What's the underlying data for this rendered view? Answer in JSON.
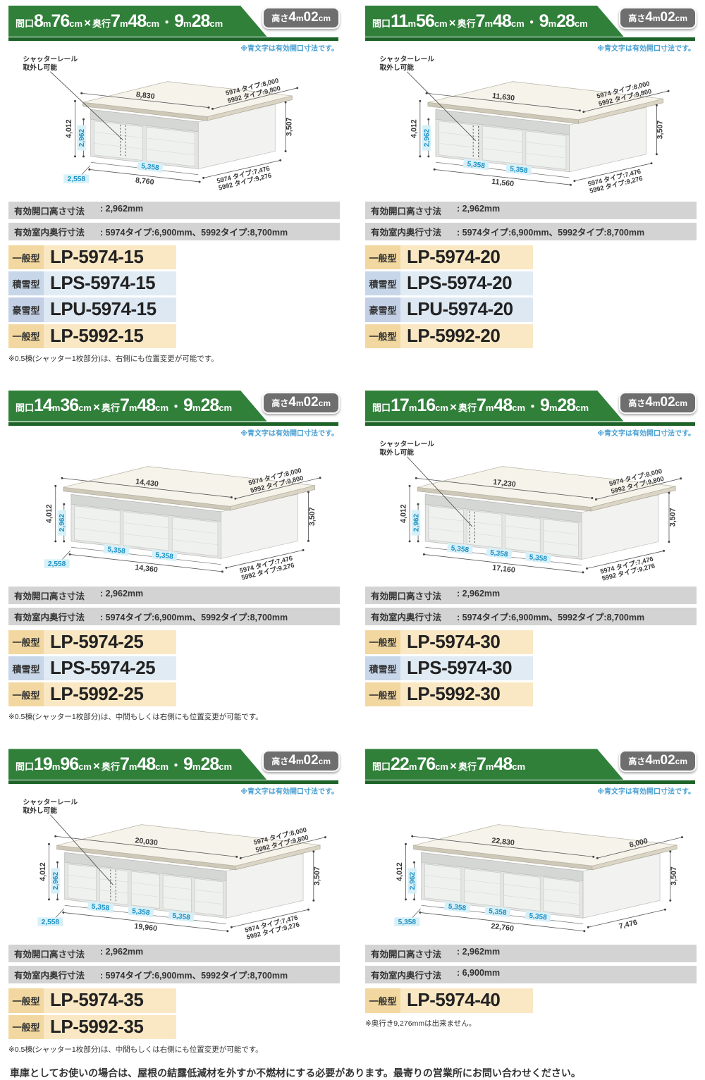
{
  "blue_note": "※青文字は有効開口寸法です。",
  "callout_text": "シャッターレール\n取外し可能",
  "height_badge_segments": [
    [
      "高さ",
      "s"
    ],
    [
      "4",
      "b"
    ],
    [
      "m",
      "s"
    ],
    [
      "02",
      "b"
    ],
    [
      "cm",
      "s"
    ]
  ],
  "footer": "車庫としてお使いの場合は、屋根の結露低減材を外すか不燃材にする必要があります。最寄りの営業所にお問い合わせください。",
  "panels": [
    {
      "header": {
        "title_segments": [
          [
            "間口",
            "s"
          ],
          [
            "8",
            "b"
          ],
          [
            "m",
            "s"
          ],
          [
            "76",
            "b"
          ],
          [
            "cm",
            "s"
          ],
          [
            "×",
            "x"
          ],
          [
            "奥行",
            "s"
          ],
          [
            "7",
            "b"
          ],
          [
            "m",
            "s"
          ],
          [
            "48",
            "b"
          ],
          [
            "cm",
            "s"
          ],
          [
            "・",
            "x"
          ],
          [
            "9",
            "b"
          ],
          [
            "m",
            "s"
          ],
          [
            "28",
            "b"
          ],
          [
            "cm",
            "s"
          ]
        ]
      },
      "diagram": {
        "callout": true,
        "top": "8,830",
        "roof_depth": [
          "5974 タイプ:8,000",
          "5992 タイプ:9,800"
        ],
        "height_total": "4,012",
        "opening_height": "2,962",
        "height_right": "3,507",
        "segments": [
          "2,558",
          "5,358"
        ],
        "bottom_total": "8,760",
        "base_depth": [
          "5974 タイプ:7,476",
          "5992 タイプ:9,276"
        ]
      },
      "specs": [
        {
          "label": "有効開口高さ寸法",
          "value": ": 2,962mm"
        },
        {
          "label": "有効室内奥行寸法",
          "value": ": 5974タイプ:6,900mm、5992タイプ:8,700mm"
        }
      ],
      "models": [
        {
          "type": "一般型",
          "code": "LP-5974-15",
          "variant": "general"
        },
        {
          "type": "積雪型",
          "code": "LPS-5974-15",
          "variant": "snow"
        },
        {
          "type": "豪雪型",
          "code": "LPU-5974-15",
          "variant": "heavy-snow"
        },
        {
          "type": "一般型",
          "code": "LP-5992-15",
          "variant": "general"
        }
      ],
      "footnote": "※0.5棟(シャッター1枚部分)は、右側にも位置変更が可能です。"
    },
    {
      "header": {
        "title_segments": [
          [
            "間口",
            "s"
          ],
          [
            "11",
            "b"
          ],
          [
            "m",
            "s"
          ],
          [
            "56",
            "b"
          ],
          [
            "cm",
            "s"
          ],
          [
            "×",
            "x"
          ],
          [
            "奥行",
            "s"
          ],
          [
            "7",
            "b"
          ],
          [
            "m",
            "s"
          ],
          [
            "48",
            "b"
          ],
          [
            "cm",
            "s"
          ],
          [
            "・",
            "x"
          ],
          [
            "9",
            "b"
          ],
          [
            "m",
            "s"
          ],
          [
            "28",
            "b"
          ],
          [
            "cm",
            "s"
          ]
        ]
      },
      "diagram": {
        "callout": true,
        "top": "11,630",
        "roof_depth": [
          "5974 タイプ:8,000",
          "5992 タイプ:9,800"
        ],
        "height_total": "4,012",
        "opening_height": "2,962",
        "height_right": "3,507",
        "segments": [
          "5,358",
          "5,358"
        ],
        "bottom_total": "11,560",
        "base_depth": [
          "5974 タイプ:7,476",
          "5992 タイプ:9,276"
        ]
      },
      "specs": [
        {
          "label": "有効開口高さ寸法",
          "value": ": 2,962mm"
        },
        {
          "label": "有効室内奥行寸法",
          "value": ": 5974タイプ:6,900mm、5992タイプ:8,700mm"
        }
      ],
      "models": [
        {
          "type": "一般型",
          "code": "LP-5974-20",
          "variant": "general"
        },
        {
          "type": "積雪型",
          "code": "LPS-5974-20",
          "variant": "snow"
        },
        {
          "type": "豪雪型",
          "code": "LPU-5974-20",
          "variant": "heavy-snow"
        },
        {
          "type": "一般型",
          "code": "LP-5992-20",
          "variant": "general"
        }
      ],
      "footnote": null
    },
    {
      "header": {
        "title_segments": [
          [
            "間口",
            "s"
          ],
          [
            "14",
            "b"
          ],
          [
            "m",
            "s"
          ],
          [
            "36",
            "b"
          ],
          [
            "cm",
            "s"
          ],
          [
            "×",
            "x"
          ],
          [
            "奥行",
            "s"
          ],
          [
            "7",
            "b"
          ],
          [
            "m",
            "s"
          ],
          [
            "48",
            "b"
          ],
          [
            "cm",
            "s"
          ],
          [
            "・",
            "x"
          ],
          [
            "9",
            "b"
          ],
          [
            "m",
            "s"
          ],
          [
            "28",
            "b"
          ],
          [
            "cm",
            "s"
          ]
        ]
      },
      "diagram": {
        "callout": false,
        "top": "14,430",
        "roof_depth": [
          "5974 タイプ:8,000",
          "5992 タイプ:9,800"
        ],
        "height_total": "4,012",
        "opening_height": "2,962",
        "height_right": "3,507",
        "segments": [
          "2,558",
          "5,358",
          "5,358"
        ],
        "bottom_total": "14,360",
        "base_depth": [
          "5974 タイプ:7,476",
          "5992 タイプ:9,276"
        ]
      },
      "specs": [
        {
          "label": "有効開口高さ寸法",
          "value": ": 2,962mm"
        },
        {
          "label": "有効室内奥行寸法",
          "value": ": 5974タイプ:6,900mm、5992タイプ:8,700mm"
        }
      ],
      "models": [
        {
          "type": "一般型",
          "code": "LP-5974-25",
          "variant": "general"
        },
        {
          "type": "積雪型",
          "code": "LPS-5974-25",
          "variant": "snow"
        },
        {
          "type": "一般型",
          "code": "LP-5992-25",
          "variant": "general"
        }
      ],
      "footnote": "※0.5棟(シャッター1枚部分)は、中間もしくは右側にも位置変更が可能です。"
    },
    {
      "header": {
        "title_segments": [
          [
            "間口",
            "s"
          ],
          [
            "17",
            "b"
          ],
          [
            "m",
            "s"
          ],
          [
            "16",
            "b"
          ],
          [
            "cm",
            "s"
          ],
          [
            "×",
            "x"
          ],
          [
            "奥行",
            "s"
          ],
          [
            "7",
            "b"
          ],
          [
            "m",
            "s"
          ],
          [
            "48",
            "b"
          ],
          [
            "cm",
            "s"
          ],
          [
            "・",
            "x"
          ],
          [
            "9",
            "b"
          ],
          [
            "m",
            "s"
          ],
          [
            "28",
            "b"
          ],
          [
            "cm",
            "s"
          ]
        ]
      },
      "diagram": {
        "callout": true,
        "top": "17,230",
        "roof_depth": [
          "5974 タイプ:8,000",
          "5992 タイプ:9,800"
        ],
        "height_total": "4,012",
        "opening_height": "2,962",
        "height_right": "3,507",
        "segments": [
          "5,358",
          "5,358",
          "5,358"
        ],
        "bottom_total": "17,160",
        "base_depth": [
          "5974 タイプ:7,476",
          "5992 タイプ:9,276"
        ]
      },
      "specs": [
        {
          "label": "有効開口高さ寸法",
          "value": ": 2,962mm"
        },
        {
          "label": "有効室内奥行寸法",
          "value": ": 5974タイプ:6,900mm、5992タイプ:8,700mm"
        }
      ],
      "models": [
        {
          "type": "一般型",
          "code": "LP-5974-30",
          "variant": "general"
        },
        {
          "type": "積雪型",
          "code": "LPS-5974-30",
          "variant": "snow"
        },
        {
          "type": "一般型",
          "code": "LP-5992-30",
          "variant": "general"
        }
      ],
      "footnote": null
    },
    {
      "header": {
        "title_segments": [
          [
            "間口",
            "s"
          ],
          [
            "19",
            "b"
          ],
          [
            "m",
            "s"
          ],
          [
            "96",
            "b"
          ],
          [
            "cm",
            "s"
          ],
          [
            "×",
            "x"
          ],
          [
            "奥行",
            "s"
          ],
          [
            "7",
            "b"
          ],
          [
            "m",
            "s"
          ],
          [
            "48",
            "b"
          ],
          [
            "cm",
            "s"
          ],
          [
            "・",
            "x"
          ],
          [
            "9",
            "b"
          ],
          [
            "m",
            "s"
          ],
          [
            "28",
            "b"
          ],
          [
            "cm",
            "s"
          ]
        ]
      },
      "diagram": {
        "callout": true,
        "top": "20,030",
        "roof_depth": [
          "5974 タイプ:8,000",
          "5992 タイプ:9,800"
        ],
        "height_total": "4,012",
        "opening_height": "2,962",
        "height_right": "3,507",
        "segments": [
          "2,558",
          "5,358",
          "5,358",
          "5,358"
        ],
        "bottom_total": "19,960",
        "base_depth": [
          "5974 タイプ:7,476",
          "5992 タイプ:9,276"
        ]
      },
      "specs": [
        {
          "label": "有効開口高さ寸法",
          "value": ": 2,962mm"
        },
        {
          "label": "有効室内奥行寸法",
          "value": ": 5974タイプ:6,900mm、5992タイプ:8,700mm"
        }
      ],
      "models": [
        {
          "type": "一般型",
          "code": "LP-5974-35",
          "variant": "general"
        },
        {
          "type": "一般型",
          "code": "LP-5992-35",
          "variant": "general"
        }
      ],
      "footnote": "※0.5棟(シャッター1枚部分)は、中間もしくは右側にも位置変更が可能です。"
    },
    {
      "header": {
        "title_segments": [
          [
            "間口",
            "s"
          ],
          [
            "22",
            "b"
          ],
          [
            "m",
            "s"
          ],
          [
            "76",
            "b"
          ],
          [
            "cm",
            "s"
          ],
          [
            "×",
            "x"
          ],
          [
            "奥行",
            "s"
          ],
          [
            "7",
            "b"
          ],
          [
            "m",
            "s"
          ],
          [
            "48",
            "b"
          ],
          [
            "cm",
            "s"
          ]
        ]
      },
      "diagram": {
        "callout": false,
        "top": "22,830",
        "roof_depth": [
          "8,000"
        ],
        "height_total": "4,012",
        "opening_height": "2,962",
        "height_right": "3,507",
        "segments": [
          "5,358",
          "5,358",
          "5,358",
          "5,358"
        ],
        "bottom_total": "22,760",
        "base_depth": [
          "7,476"
        ]
      },
      "specs": [
        {
          "label": "有効開口高さ寸法",
          "value": ": 2,962mm"
        },
        {
          "label": "有効室内奥行寸法",
          "value": ": 6,900mm"
        }
      ],
      "models": [
        {
          "type": "一般型",
          "code": "LP-5974-40",
          "variant": "general"
        }
      ],
      "footnote": "※奥行き9,276mmは出来ません。"
    }
  ]
}
